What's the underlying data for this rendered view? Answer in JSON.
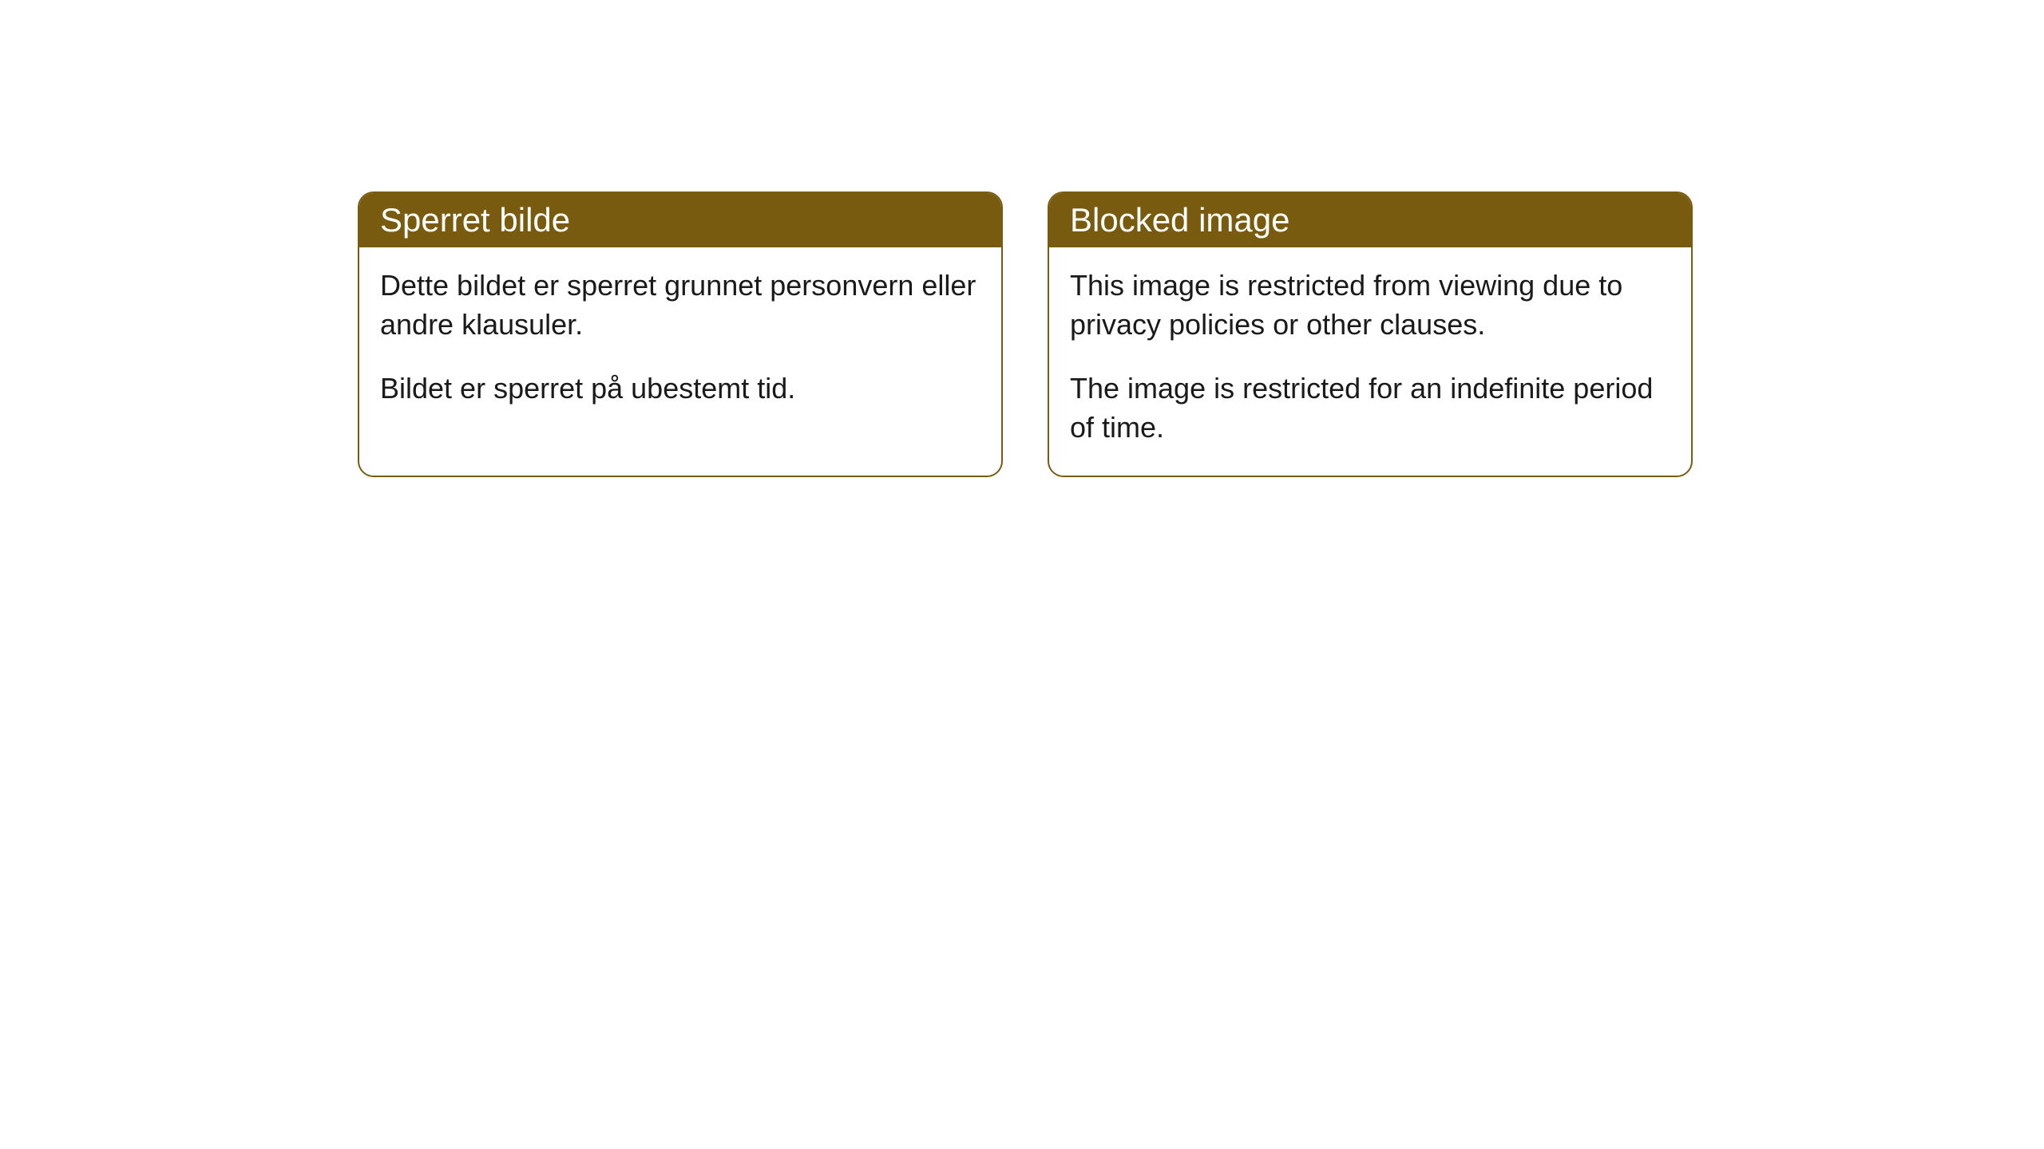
{
  "cards": [
    {
      "title": "Sperret bilde",
      "paragraph1": "Dette bildet er sperret grunnet personvern eller andre klausuler.",
      "paragraph2": "Bildet er sperret på ubestemt tid."
    },
    {
      "title": "Blocked image",
      "paragraph1": "This image is restricted from viewing due to privacy policies or other clauses.",
      "paragraph2": "The image is restricted for an indefinite period of time."
    }
  ],
  "styling": {
    "header_background": "#785b0f",
    "header_text_color": "#ffffff",
    "border_color": "#785b0f",
    "body_background": "#ffffff",
    "body_text_color": "#1a1a1a",
    "border_radius": 20,
    "header_font_size": 42,
    "body_font_size": 36
  }
}
